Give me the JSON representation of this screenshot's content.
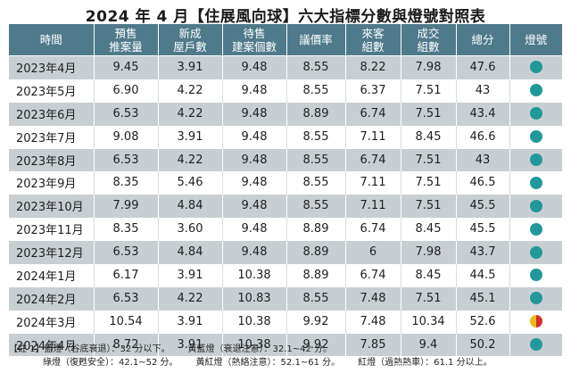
{
  "title": "2024 年 4 月【住展風向球】六大指標分數與燈號對照表",
  "headers": [
    [
      "時間"
    ],
    [
      "預售",
      "推案量"
    ],
    [
      "新成",
      "屋戶數"
    ],
    [
      "待售",
      "建案個數"
    ],
    [
      "議價率"
    ],
    [
      "來客",
      "組數"
    ],
    [
      "成交",
      "組數"
    ],
    [
      "總分"
    ],
    [
      "燈號"
    ]
  ],
  "rows": [
    {
      "date": "2023年4月",
      "v": [
        "9.45",
        "3.91",
        "9.48",
        "8.55",
        "8.22",
        "7.98",
        "47.6"
      ],
      "light": "blue-green"
    },
    {
      "date": "2023年5月",
      "v": [
        "6.90",
        "4.22",
        "9.48",
        "8.55",
        "6.37",
        "7.51",
        "43"
      ],
      "light": "blue-green"
    },
    {
      "date": "2023年6月",
      "v": [
        "6.53",
        "4.22",
        "9.48",
        "8.89",
        "6.74",
        "7.51",
        "43.4"
      ],
      "light": "blue-green"
    },
    {
      "date": "2023年7月",
      "v": [
        "9.08",
        "3.91",
        "9.48",
        "8.55",
        "7.11",
        "8.45",
        "46.6"
      ],
      "light": "blue-green"
    },
    {
      "date": "2023年8月",
      "v": [
        "6.53",
        "4.22",
        "9.48",
        "8.55",
        "6.74",
        "7.51",
        "43"
      ],
      "light": "blue-green"
    },
    {
      "date": "2023年9月",
      "v": [
        "8.35",
        "5.46",
        "9.48",
        "8.55",
        "7.11",
        "7.51",
        "46.5"
      ],
      "light": "blue-green"
    },
    {
      "date": "2023年10月",
      "v": [
        "7.99",
        "4.84",
        "9.48",
        "8.55",
        "7.11",
        "7.51",
        "45.5"
      ],
      "light": "blue-green"
    },
    {
      "date": "2023年11月",
      "v": [
        "8.35",
        "3.60",
        "9.48",
        "8.89",
        "6.74",
        "8.45",
        "45.5"
      ],
      "light": "blue-green"
    },
    {
      "date": "2023年12月",
      "v": [
        "6.53",
        "4.84",
        "9.48",
        "8.89",
        "6",
        "7.98",
        "43.7"
      ],
      "light": "blue-green"
    },
    {
      "date": "2024年1月",
      "v": [
        "6.17",
        "3.91",
        "10.38",
        "8.89",
        "6.74",
        "8.45",
        "44.5"
      ],
      "light": "blue-green"
    },
    {
      "date": "2024年2月",
      "v": [
        "6.53",
        "4.22",
        "10.83",
        "8.55",
        "7.48",
        "7.51",
        "45.1"
      ],
      "light": "blue-green"
    },
    {
      "date": "2024年3月",
      "v": [
        "10.54",
        "3.91",
        "10.38",
        "9.92",
        "7.48",
        "10.34",
        "52.6"
      ],
      "light": "yellow-red"
    },
    {
      "date": "2024年4月",
      "v": [
        "8.72",
        "3.91",
        "10.38",
        "9.92",
        "7.85",
        "9.4",
        "50.2"
      ],
      "light": "blue-green"
    }
  ],
  "notes": {
    "line1": [
      "【註 1】藍燈（谷底衰退）：32 分以下。",
      "黃藍燈（衰退注意）：32.1~42 分。"
    ],
    "line2": [
      "綠燈（復甦安全）：42.1~52 分。",
      "黃紅燈（熱絡注意）：52.1~61 分。",
      "紅燈（過熱熱車）：61.1 分以上。"
    ]
  },
  "colors": {
    "header_bg": "#4e7a8a",
    "stripe_bg": "#c8cfd3",
    "green_light": "#22989a",
    "yellow": "#e7bb1d",
    "red": "#d02e27"
  }
}
